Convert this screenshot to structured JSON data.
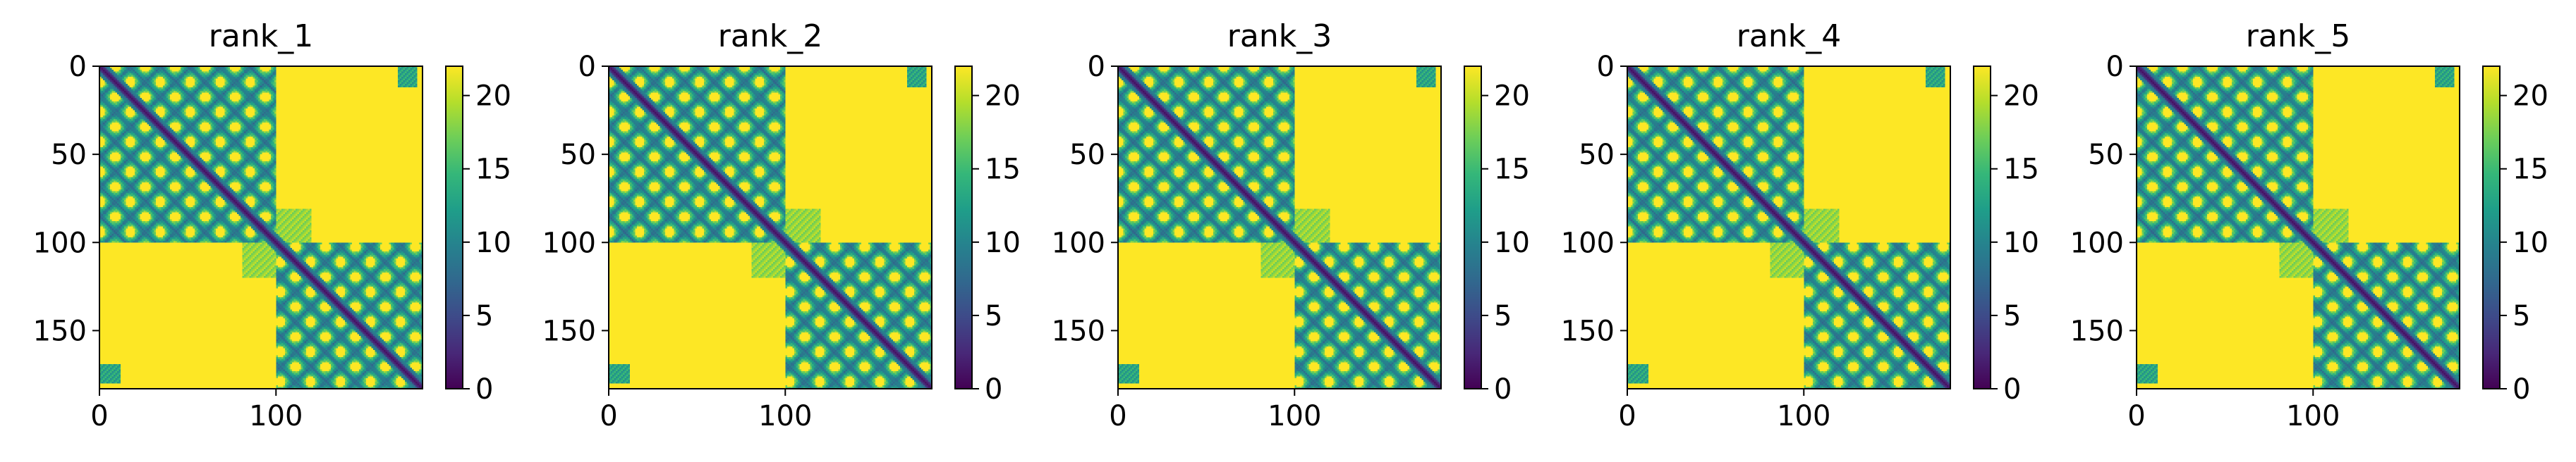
{
  "chart_data": [
    {
      "type": "heatmap",
      "title": "rank_1",
      "matrix_size": 183,
      "x_ticks": [
        0,
        100
      ],
      "y_ticks": [
        0,
        50,
        100,
        150
      ],
      "colorbar": {
        "min": 0,
        "max": 22,
        "ticks": [
          0,
          5,
          10,
          15,
          20
        ],
        "colormap": "viridis"
      },
      "description_values": {
        "diagonal": 0,
        "background": 22,
        "domain_split": 100
      }
    },
    {
      "type": "heatmap",
      "title": "rank_2",
      "matrix_size": 183,
      "x_ticks": [
        0,
        100
      ],
      "y_ticks": [
        0,
        50,
        100,
        150
      ],
      "colorbar": {
        "min": 0,
        "max": 22,
        "ticks": [
          0,
          5,
          10,
          15,
          20
        ],
        "colormap": "viridis"
      },
      "description_values": {
        "diagonal": 0,
        "background": 22,
        "domain_split": 100
      }
    },
    {
      "type": "heatmap",
      "title": "rank_3",
      "matrix_size": 183,
      "x_ticks": [
        0,
        100
      ],
      "y_ticks": [
        0,
        50,
        100,
        150
      ],
      "colorbar": {
        "min": 0,
        "max": 22,
        "ticks": [
          0,
          5,
          10,
          15,
          20
        ],
        "colormap": "viridis"
      },
      "description_values": {
        "diagonal": 0,
        "background": 22,
        "domain_split": 100
      }
    },
    {
      "type": "heatmap",
      "title": "rank_4",
      "matrix_size": 183,
      "x_ticks": [
        0,
        100
      ],
      "y_ticks": [
        0,
        50,
        100,
        150
      ],
      "colorbar": {
        "min": 0,
        "max": 22,
        "ticks": [
          0,
          5,
          10,
          15,
          20
        ],
        "colormap": "viridis"
      },
      "description_values": {
        "diagonal": 0,
        "background": 22,
        "domain_split": 100
      }
    },
    {
      "type": "heatmap",
      "title": "rank_5",
      "matrix_size": 183,
      "x_ticks": [
        0,
        100
      ],
      "y_ticks": [
        0,
        50,
        100,
        150
      ],
      "colorbar": {
        "min": 0,
        "max": 22,
        "ticks": [
          0,
          5,
          10,
          15,
          20
        ],
        "colormap": "viridis"
      },
      "description_values": {
        "diagonal": 0,
        "background": 22,
        "domain_split": 100
      }
    }
  ],
  "colors": {
    "viridis_stops": [
      "#440154",
      "#482878",
      "#3e4a89",
      "#31688e",
      "#26828e",
      "#1f9e89",
      "#35b779",
      "#6ece58",
      "#b5de2b",
      "#fde725"
    ],
    "axis": "#000000",
    "background": "#ffffff"
  }
}
